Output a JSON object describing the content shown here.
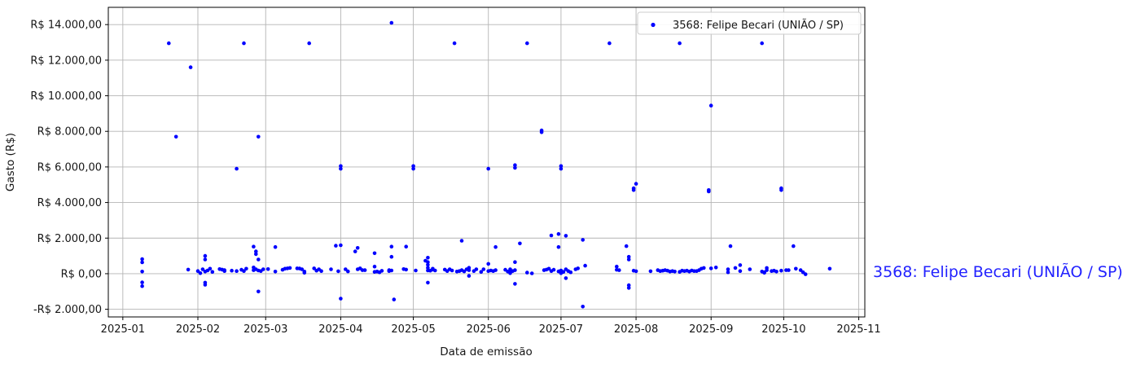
{
  "figure": {
    "right_label": "3568: Felipe Becari (UNIÃO / SP)",
    "right_label_color": "#2222ff",
    "background": "#ffffff"
  },
  "chart_data": {
    "type": "scatter",
    "title": "",
    "xlabel": "Data de emissão",
    "ylabel": "Gasto (R$)",
    "grid": true,
    "grid_color": "#b4b4b4",
    "marker_color": "#0000ff",
    "legend": {
      "label": "3568: Felipe Becari (UNIÃO / SP)",
      "position": "upper right",
      "marker_color": "#0000ff"
    },
    "x_tick_labels": [
      "2025-01",
      "2025-02",
      "2025-03",
      "2025-04",
      "2025-05",
      "2025-06",
      "2025-07",
      "2025-08",
      "2025-09",
      "2025-10",
      "2025-11"
    ],
    "y_tick_values": [
      -2000,
      0,
      2000,
      4000,
      6000,
      8000,
      10000,
      12000,
      14000
    ],
    "y_tick_labels": [
      "-R$ 2.000,00",
      "R$ 0,00",
      "R$ 2.000,00",
      "R$ 4.000,00",
      "R$ 6.000,00",
      "R$ 8.000,00",
      "R$ 10.000,00",
      "R$ 12.000,00",
      "R$ 14.000,00"
    ],
    "ylim": [
      -2430,
      14970
    ],
    "xlim_days": [
      -6,
      306.5
    ],
    "points": [
      [
        "2025-01-20",
        12950
      ],
      [
        "2025-02-20",
        12950
      ],
      [
        "2025-03-19",
        12950
      ],
      [
        "2025-05-18",
        12950
      ],
      [
        "2025-06-17",
        12950
      ],
      [
        "2025-07-21",
        12950
      ],
      [
        "2025-08-19",
        12950
      ],
      [
        "2025-09-22",
        12950
      ],
      [
        "2025-04-22",
        14100
      ],
      [
        "2025-01-29",
        11600
      ],
      [
        "2025-09-01",
        9450
      ],
      [
        "2025-01-23",
        7700
      ],
      [
        "2025-02-26",
        7700
      ],
      [
        "2025-06-23",
        8050
      ],
      [
        "2025-06-23",
        7950
      ],
      [
        "2025-02-17",
        5900
      ],
      [
        "2025-04-01",
        6050
      ],
      [
        "2025-04-01",
        5900
      ],
      [
        "2025-05-01",
        6050
      ],
      [
        "2025-05-01",
        5900
      ],
      [
        "2025-06-01",
        5900
      ],
      [
        "2025-06-12",
        6100
      ],
      [
        "2025-06-12",
        5950
      ],
      [
        "2025-07-01",
        6050
      ],
      [
        "2025-07-01",
        5900
      ],
      [
        "2025-08-01",
        5050
      ],
      [
        "2025-07-31",
        4800
      ],
      [
        "2025-07-31",
        4700
      ],
      [
        "2025-08-31",
        4700
      ],
      [
        "2025-08-31",
        4620
      ],
      [
        "2025-09-30",
        4800
      ],
      [
        "2025-09-30",
        4700
      ],
      [
        "2025-01-09",
        820
      ],
      [
        "2025-01-09",
        640
      ],
      [
        "2025-01-09",
        120
      ],
      [
        "2025-01-09",
        -490
      ],
      [
        "2025-01-09",
        -700
      ],
      [
        "2025-01-28",
        230
      ],
      [
        "2025-02-01",
        150
      ],
      [
        "2025-02-02",
        30
      ],
      [
        "2025-02-03",
        250
      ],
      [
        "2025-02-04",
        1000
      ],
      [
        "2025-02-04",
        800
      ],
      [
        "2025-02-04",
        120
      ],
      [
        "2025-02-04",
        -500
      ],
      [
        "2025-02-04",
        -620
      ],
      [
        "2025-02-05",
        180
      ],
      [
        "2025-02-06",
        280
      ],
      [
        "2025-02-07",
        100
      ],
      [
        "2025-02-10",
        260
      ],
      [
        "2025-02-11",
        230
      ],
      [
        "2025-02-12",
        200
      ],
      [
        "2025-02-12",
        150
      ],
      [
        "2025-02-15",
        170
      ],
      [
        "2025-02-17",
        150
      ],
      [
        "2025-02-19",
        220
      ],
      [
        "2025-02-20",
        150
      ],
      [
        "2025-02-21",
        280
      ],
      [
        "2025-02-24",
        1520
      ],
      [
        "2025-02-24",
        350
      ],
      [
        "2025-02-24",
        200
      ],
      [
        "2025-02-25",
        1250
      ],
      [
        "2025-02-25",
        1100
      ],
      [
        "2025-02-25",
        250
      ],
      [
        "2025-02-26",
        800
      ],
      [
        "2025-02-26",
        180
      ],
      [
        "2025-02-26",
        -1000
      ],
      [
        "2025-02-27",
        150
      ],
      [
        "2025-02-28",
        250
      ],
      [
        "2025-03-02",
        260
      ],
      [
        "2025-03-05",
        1500
      ],
      [
        "2025-03-05",
        120
      ],
      [
        "2025-03-08",
        220
      ],
      [
        "2025-03-09",
        280
      ],
      [
        "2025-03-10",
        300
      ],
      [
        "2025-03-11",
        320
      ],
      [
        "2025-03-14",
        300
      ],
      [
        "2025-03-15",
        290
      ],
      [
        "2025-03-16",
        250
      ],
      [
        "2025-03-17",
        120
      ],
      [
        "2025-03-17",
        50
      ],
      [
        "2025-03-21",
        300
      ],
      [
        "2025-03-22",
        170
      ],
      [
        "2025-03-23",
        250
      ],
      [
        "2025-03-24",
        150
      ],
      [
        "2025-03-28",
        250
      ],
      [
        "2025-03-30",
        1570
      ],
      [
        "2025-03-31",
        140
      ],
      [
        "2025-04-01",
        1600
      ],
      [
        "2025-04-01",
        -1400
      ],
      [
        "2025-04-03",
        250
      ],
      [
        "2025-04-04",
        130
      ],
      [
        "2025-04-07",
        1250
      ],
      [
        "2025-04-08",
        1450
      ],
      [
        "2025-04-08",
        250
      ],
      [
        "2025-04-09",
        300
      ],
      [
        "2025-04-10",
        200
      ],
      [
        "2025-04-11",
        200
      ],
      [
        "2025-04-15",
        1150
      ],
      [
        "2025-04-15",
        400
      ],
      [
        "2025-04-15",
        100
      ],
      [
        "2025-04-16",
        120
      ],
      [
        "2025-04-17",
        80
      ],
      [
        "2025-04-18",
        160
      ],
      [
        "2025-04-21",
        200
      ],
      [
        "2025-04-21",
        150
      ],
      [
        "2025-04-22",
        1520
      ],
      [
        "2025-04-22",
        950
      ],
      [
        "2025-04-22",
        180
      ],
      [
        "2025-04-23",
        -1450
      ],
      [
        "2025-04-27",
        260
      ],
      [
        "2025-04-28",
        1520
      ],
      [
        "2025-04-28",
        230
      ],
      [
        "2025-05-02",
        180
      ],
      [
        "2025-05-06",
        730
      ],
      [
        "2025-05-07",
        900
      ],
      [
        "2025-05-07",
        650
      ],
      [
        "2025-05-07",
        500
      ],
      [
        "2025-05-07",
        330
      ],
      [
        "2025-05-07",
        180
      ],
      [
        "2025-05-07",
        -500
      ],
      [
        "2025-05-08",
        170
      ],
      [
        "2025-05-09",
        280
      ],
      [
        "2025-05-09",
        230
      ],
      [
        "2025-05-10",
        180
      ],
      [
        "2025-05-14",
        230
      ],
      [
        "2025-05-15",
        150
      ],
      [
        "2025-05-16",
        250
      ],
      [
        "2025-05-17",
        180
      ],
      [
        "2025-05-19",
        120
      ],
      [
        "2025-05-20",
        150
      ],
      [
        "2025-05-21",
        1850
      ],
      [
        "2025-05-21",
        200
      ],
      [
        "2025-05-22",
        130
      ],
      [
        "2025-05-23",
        250
      ],
      [
        "2025-05-24",
        330
      ],
      [
        "2025-05-24",
        200
      ],
      [
        "2025-05-24",
        -120
      ],
      [
        "2025-05-26",
        150
      ],
      [
        "2025-05-27",
        250
      ],
      [
        "2025-05-29",
        100
      ],
      [
        "2025-05-30",
        250
      ],
      [
        "2025-06-01",
        550
      ],
      [
        "2025-06-01",
        150
      ],
      [
        "2025-06-02",
        180
      ],
      [
        "2025-06-03",
        150
      ],
      [
        "2025-06-04",
        1500
      ],
      [
        "2025-06-04",
        200
      ],
      [
        "2025-06-08",
        220
      ],
      [
        "2025-06-09",
        120
      ],
      [
        "2025-06-10",
        250
      ],
      [
        "2025-06-10",
        100
      ],
      [
        "2025-06-10",
        30
      ],
      [
        "2025-06-11",
        150
      ],
      [
        "2025-06-12",
        650
      ],
      [
        "2025-06-12",
        200
      ],
      [
        "2025-06-12",
        -570
      ],
      [
        "2025-06-14",
        1700
      ],
      [
        "2025-06-17",
        60
      ],
      [
        "2025-06-19",
        20
      ],
      [
        "2025-06-24",
        200
      ],
      [
        "2025-06-25",
        230
      ],
      [
        "2025-06-26",
        280
      ],
      [
        "2025-06-27",
        2150
      ],
      [
        "2025-06-27",
        150
      ],
      [
        "2025-06-28",
        220
      ],
      [
        "2025-06-30",
        2230
      ],
      [
        "2025-06-30",
        1500
      ],
      [
        "2025-06-30",
        130
      ],
      [
        "2025-07-01",
        180
      ],
      [
        "2025-07-01",
        30
      ],
      [
        "2025-07-02",
        100
      ],
      [
        "2025-07-03",
        2130
      ],
      [
        "2025-07-03",
        250
      ],
      [
        "2025-07-03",
        -250
      ],
      [
        "2025-07-04",
        150
      ],
      [
        "2025-07-05",
        80
      ],
      [
        "2025-07-07",
        250
      ],
      [
        "2025-07-08",
        300
      ],
      [
        "2025-07-10",
        1900
      ],
      [
        "2025-07-10",
        -1850
      ],
      [
        "2025-07-11",
        450
      ],
      [
        "2025-07-24",
        400
      ],
      [
        "2025-07-24",
        220
      ],
      [
        "2025-07-25",
        200
      ],
      [
        "2025-07-28",
        1550
      ],
      [
        "2025-07-29",
        950
      ],
      [
        "2025-07-29",
        800
      ],
      [
        "2025-07-29",
        -650
      ],
      [
        "2025-07-29",
        -800
      ],
      [
        "2025-07-31",
        170
      ],
      [
        "2025-08-01",
        140
      ],
      [
        "2025-08-07",
        140
      ],
      [
        "2025-08-10",
        200
      ],
      [
        "2025-08-11",
        150
      ],
      [
        "2025-08-12",
        170
      ],
      [
        "2025-08-13",
        200
      ],
      [
        "2025-08-14",
        170
      ],
      [
        "2025-08-15",
        120
      ],
      [
        "2025-08-16",
        150
      ],
      [
        "2025-08-17",
        120
      ],
      [
        "2025-08-19",
        100
      ],
      [
        "2025-08-20",
        170
      ],
      [
        "2025-08-21",
        150
      ],
      [
        "2025-08-22",
        170
      ],
      [
        "2025-08-23",
        120
      ],
      [
        "2025-08-24",
        180
      ],
      [
        "2025-08-25",
        150
      ],
      [
        "2025-08-26",
        150
      ],
      [
        "2025-08-27",
        200
      ],
      [
        "2025-08-28",
        280
      ],
      [
        "2025-08-29",
        320
      ],
      [
        "2025-09-01",
        300
      ],
      [
        "2025-09-03",
        350
      ],
      [
        "2025-09-08",
        250
      ],
      [
        "2025-09-08",
        80
      ],
      [
        "2025-09-09",
        1550
      ],
      [
        "2025-09-11",
        320
      ],
      [
        "2025-09-13",
        480
      ],
      [
        "2025-09-13",
        150
      ],
      [
        "2025-09-17",
        250
      ],
      [
        "2025-09-22",
        120
      ],
      [
        "2025-09-23",
        80
      ],
      [
        "2025-09-23",
        50
      ],
      [
        "2025-09-24",
        320
      ],
      [
        "2025-09-24",
        200
      ],
      [
        "2025-09-26",
        150
      ],
      [
        "2025-09-27",
        170
      ],
      [
        "2025-09-28",
        120
      ],
      [
        "2025-09-30",
        170
      ],
      [
        "2025-10-02",
        200
      ],
      [
        "2025-10-03",
        200
      ],
      [
        "2025-10-05",
        1550
      ],
      [
        "2025-10-06",
        280
      ],
      [
        "2025-10-08",
        200
      ],
      [
        "2025-10-09",
        80
      ],
      [
        "2025-10-10",
        -30
      ],
      [
        "2025-10-20",
        280
      ]
    ]
  }
}
